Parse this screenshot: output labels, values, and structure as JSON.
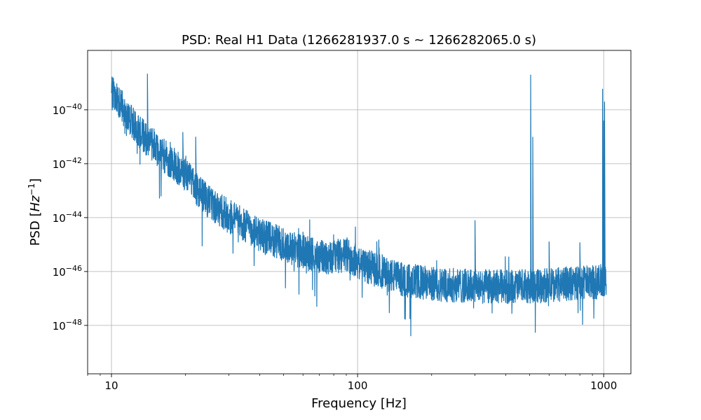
{
  "chart_data": {
    "type": "line",
    "title": "PSD: Real H1 Data (1266281937.0 s ~ 1266282065.0 s)",
    "xlabel": "Frequency [Hz]",
    "ylabel_prefix": "PSD [",
    "ylabel_unit": "Hz",
    "ylabel_exponent": "−1",
    "ylabel_suffix": "]",
    "xscale": "log",
    "yscale": "log",
    "xlim": [
      8,
      1290
    ],
    "ylim": [
      1.6e-50,
      1.6e-38
    ],
    "grid": true,
    "x_ticks": [
      {
        "value": 10,
        "label": "10"
      },
      {
        "value": 100,
        "label": "100"
      },
      {
        "value": 1000,
        "label": "1000"
      }
    ],
    "y_ticks": [
      {
        "value": 1e-40,
        "base": "10",
        "exp": "−40"
      },
      {
        "value": 1e-42,
        "base": "10",
        "exp": "−42"
      },
      {
        "value": 1e-44,
        "base": "10",
        "exp": "−44"
      },
      {
        "value": 1e-46,
        "base": "10",
        "exp": "−46"
      },
      {
        "value": 1e-48,
        "base": "10",
        "exp": "−48"
      }
    ],
    "line_color": "#1f77b4",
    "series": [
      {
        "x_range": [
          10,
          1024
        ],
        "baseline_points": [
          [
            10,
            5e-40
          ],
          [
            11,
            1.6e-40
          ],
          [
            12,
            5e-41
          ],
          [
            13,
            1.6e-41
          ],
          [
            15,
            5e-42
          ],
          [
            17,
            1.6e-42
          ],
          [
            20,
            5e-43
          ],
          [
            22,
            1.3e-43
          ],
          [
            25,
            4e-44
          ],
          [
            30,
            1.3e-44
          ],
          [
            35,
            6e-45
          ],
          [
            40,
            2.5e-45
          ],
          [
            50,
            1.2e-45
          ],
          [
            60,
            6e-46
          ],
          [
            70,
            4e-46
          ],
          [
            80,
            4e-46
          ],
          [
            90,
            5e-46
          ],
          [
            100,
            2.5e-46
          ],
          [
            120,
            1.3e-46
          ],
          [
            150,
            6e-47
          ],
          [
            200,
            4e-47
          ],
          [
            300,
            3.2e-47
          ],
          [
            500,
            3.2e-47
          ],
          [
            700,
            4e-47
          ],
          [
            1024,
            5e-47
          ]
        ],
        "spikes": [
          [
            14,
            2.2e-39
          ],
          [
            19.5,
            1.5e-41
          ],
          [
            22,
            1e-41
          ],
          [
            60,
            3e-45
          ],
          [
            85,
            5e-46
          ],
          [
            300,
            8e-45
          ],
          [
            505,
            2e-39
          ],
          [
            515,
            1e-41
          ],
          [
            600,
            1.3e-45
          ],
          [
            800,
            1.2e-45
          ],
          [
            990,
            6e-40
          ],
          [
            1000,
            4e-41
          ],
          [
            1008,
            2e-40
          ]
        ]
      }
    ]
  }
}
